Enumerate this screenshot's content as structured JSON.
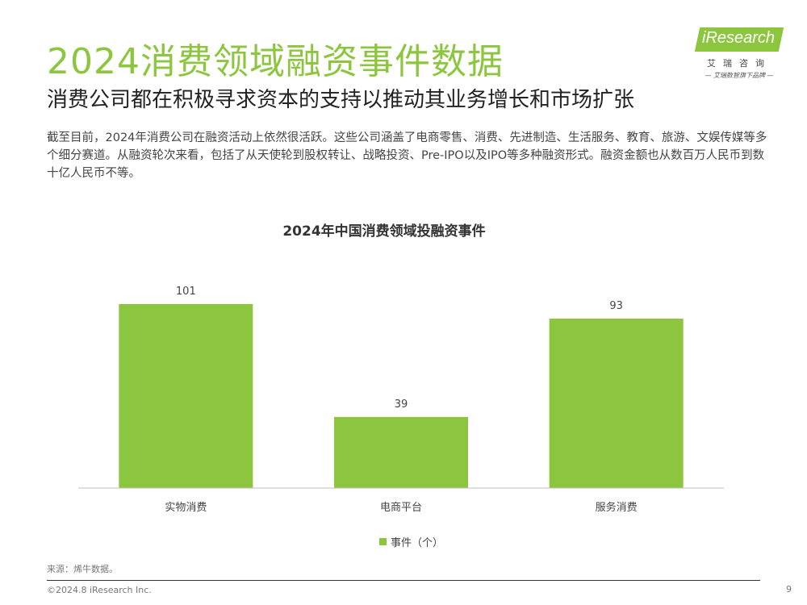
{
  "page": {
    "title": "2024消费领域融资事件数据",
    "subtitle": "消费公司都在积极寻求资本的支持以推动其业务增长和市场扩张",
    "body": "截至目前，2024年消费公司在融资活动上依然很活跃。这些公司涵盖了电商零售、消费、先进制造、生活服务、教育、旅游、文娱传媒等多个细分赛道。从融资轮次来看，包括了从天使轮到股权转让、战略投资、Pre-IPO以及IPO等多种融资形式。融资金额也从数百万人民币到数十亿人民币不等。"
  },
  "logo": {
    "wordmark": "iResearch",
    "cn_name": "艾瑞咨询",
    "tagline": "— 艾瑞数智旗下品牌 —"
  },
  "chart_data": {
    "type": "bar",
    "title": "2024年中国消费领域投融资事件",
    "categories": [
      "实物消费",
      "电商平台",
      "服务消费"
    ],
    "series": [
      {
        "name": "事件（个）",
        "values": [
          101,
          39,
          93
        ]
      }
    ],
    "data_labels": [
      "101",
      "39",
      "93"
    ],
    "ylim": [
      0,
      120
    ],
    "grid": false,
    "legend_position": "bottom",
    "color": "#8cc63f"
  },
  "footer": {
    "source": "来源：烯牛数据。",
    "copyright": "©2024.8 iResearch Inc.",
    "page_number": "9"
  }
}
